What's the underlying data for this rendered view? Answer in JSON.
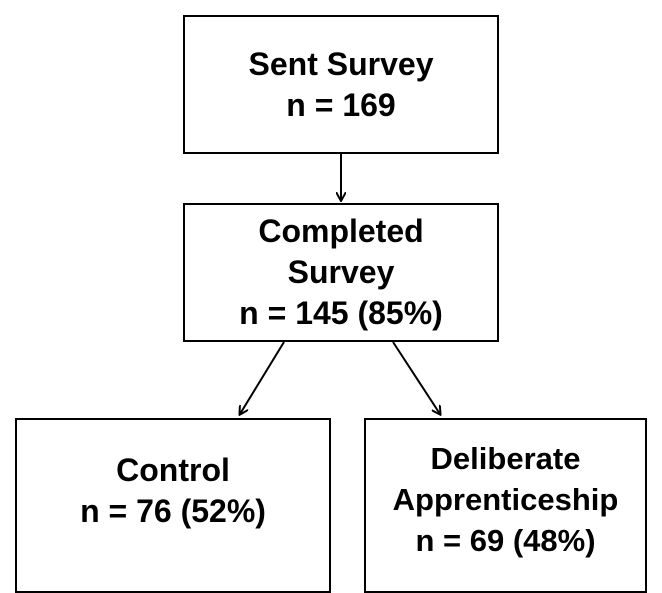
{
  "flowchart": {
    "sent_survey": {
      "lines": [
        "Sent Survey",
        "n = 169"
      ]
    },
    "completed_survey": {
      "lines": [
        "Completed",
        "Survey",
        "n = 145 (85%)"
      ]
    },
    "control": {
      "lines": [
        "Control",
        "n = 76 (52%)"
      ]
    },
    "deliberate_apprenticeship": {
      "lines": [
        "Deliberate",
        "Apprenticeship",
        "n = 69 (48%)"
      ]
    }
  },
  "colors": {
    "border": "#000000",
    "text": "#000000",
    "background": "#ffffff"
  }
}
